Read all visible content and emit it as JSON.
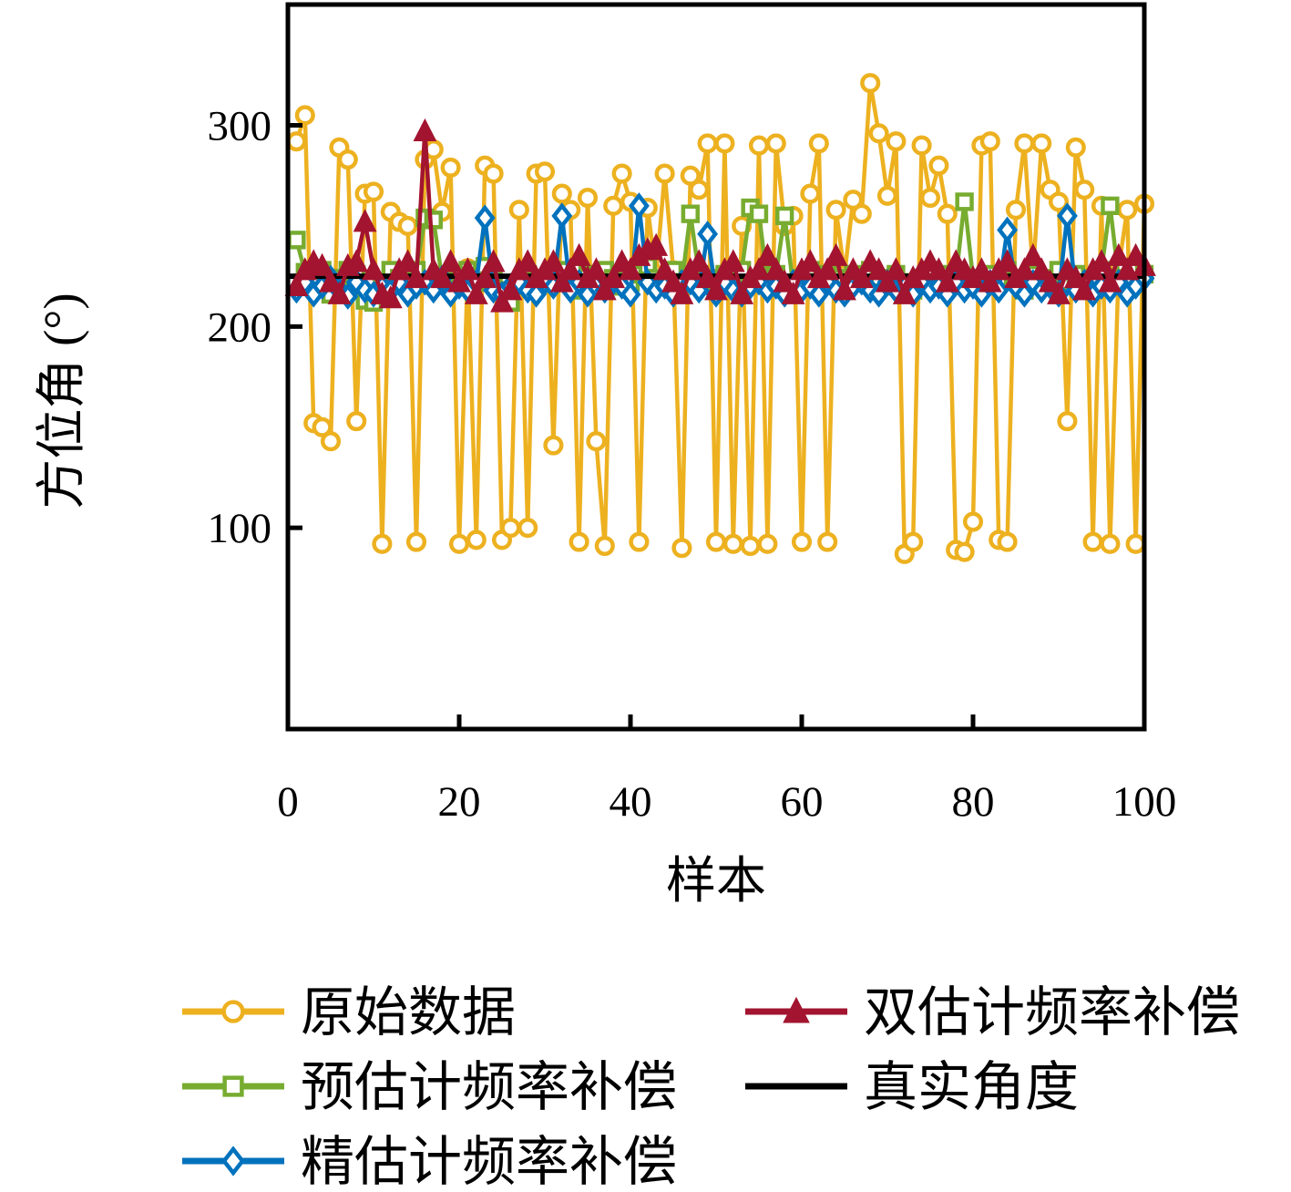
{
  "figure": {
    "background": "#ffffff",
    "axis_color": "#000000"
  },
  "chart_data": {
    "type": "line",
    "title": "",
    "xlabel": "样本",
    "ylabel": "方位角 (°)",
    "xlim": [
      0,
      100
    ],
    "ylim": [
      0,
      360
    ],
    "xticks": [
      0,
      20,
      40,
      60,
      80,
      100
    ],
    "yticks": [
      100,
      200,
      300
    ],
    "grid": false,
    "legend_position": "below",
    "x_start": 1,
    "series": [
      {
        "name": "原始数据",
        "color": "#EDB120",
        "marker": "circle",
        "marker_fill": "open",
        "values": [
          292,
          305,
          152,
          150,
          143,
          289,
          283,
          153,
          266,
          267,
          92,
          257,
          252,
          250,
          93,
          283,
          288,
          257,
          279,
          92,
          229,
          94,
          280,
          276,
          94,
          100,
          258,
          100,
          276,
          277,
          141,
          266,
          258,
          93,
          264,
          143,
          91,
          260,
          276,
          262,
          93,
          259,
          226,
          276,
          228,
          90,
          275,
          268,
          291,
          93,
          291,
          92,
          250,
          91,
          290,
          92,
          291,
          250,
          255,
          93,
          266,
          291,
          93,
          258,
          226,
          263,
          256,
          321,
          296,
          265,
          292,
          87,
          93,
          290,
          264,
          280,
          256,
          89,
          88,
          103,
          290,
          292,
          94,
          93,
          258,
          291,
          226,
          291,
          268,
          262,
          153,
          289,
          268,
          93,
          260,
          92,
          229,
          258,
          92,
          261
        ]
      },
      {
        "name": "预估计频率补偿",
        "color": "#77AC30",
        "marker": "square",
        "marker_fill": "open",
        "values": [
          243,
          227,
          222,
          228,
          216,
          224,
          228,
          226,
          213,
          212,
          222,
          228,
          224,
          221,
          228,
          254,
          253,
          224,
          220,
          226,
          228,
          222,
          230,
          224,
          218,
          212,
          222,
          226,
          224,
          221,
          226,
          228,
          222,
          218,
          226,
          222,
          228,
          224,
          220,
          222,
          226,
          230,
          224,
          222,
          228,
          222,
          256,
          226,
          224,
          220,
          226,
          222,
          228,
          259,
          256,
          222,
          226,
          255,
          220,
          224,
          228,
          222,
          226,
          224,
          218,
          226,
          222,
          228,
          224,
          220,
          226,
          222,
          218,
          224,
          228,
          222,
          226,
          224,
          262,
          224,
          220,
          226,
          222,
          228,
          224,
          218,
          226,
          222,
          224,
          228,
          222,
          226,
          220,
          224,
          228,
          260,
          224,
          221,
          228,
          226
        ]
      },
      {
        "name": "精估计频率补偿",
        "color": "#0072BD",
        "marker": "diamond",
        "marker_fill": "open",
        "values": [
          218,
          222,
          216,
          220,
          224,
          218,
          215,
          222,
          218,
          216,
          220,
          218,
          222,
          216,
          220,
          222,
          218,
          224,
          216,
          220,
          218,
          222,
          254,
          218,
          216,
          220,
          222,
          218,
          216,
          222,
          220,
          255,
          218,
          222,
          216,
          220,
          218,
          222,
          220,
          216,
          260,
          222,
          218,
          220,
          216,
          222,
          222,
          218,
          246,
          216,
          222,
          218,
          216,
          220,
          222,
          218,
          220,
          216,
          222,
          218,
          220,
          216,
          222,
          218,
          216,
          220,
          222,
          218,
          216,
          222,
          218,
          220,
          216,
          222,
          218,
          220,
          216,
          222,
          218,
          220,
          216,
          222,
          218,
          248,
          220,
          216,
          222,
          218,
          220,
          216,
          255,
          218,
          222,
          216,
          220,
          218,
          222,
          216,
          220,
          224
        ]
      },
      {
        "name": "双估计频率补偿",
        "color": "#A2142F",
        "marker": "triangle",
        "marker_fill": "solid",
        "values": [
          220,
          228,
          232,
          230,
          222,
          216,
          230,
          232,
          252,
          228,
          216,
          214,
          228,
          232,
          224,
          297,
          228,
          224,
          232,
          222,
          228,
          216,
          224,
          232,
          212,
          218,
          228,
          232,
          224,
          228,
          232,
          222,
          228,
          235,
          224,
          228,
          218,
          224,
          232,
          228,
          235,
          238,
          240,
          228,
          222,
          216,
          228,
          232,
          224,
          218,
          228,
          232,
          216,
          224,
          228,
          235,
          228,
          222,
          216,
          228,
          232,
          224,
          228,
          235,
          218,
          228,
          224,
          232,
          228,
          222,
          228,
          216,
          224,
          228,
          232,
          228,
          222,
          232,
          228,
          224,
          228,
          222,
          228,
          232,
          224,
          228,
          235,
          228,
          222,
          216,
          228,
          224,
          218,
          228,
          232,
          222,
          235,
          228,
          235,
          230
        ]
      }
    ],
    "true_line": {
      "name": "真实角度",
      "color": "#000000",
      "value": 225
    }
  },
  "legend": {
    "entries": [
      {
        "label": "原始数据",
        "series": 0,
        "col": 0,
        "row": 0
      },
      {
        "label": "双估计频率补偿",
        "series": 3,
        "col": 1,
        "row": 0
      },
      {
        "label": "预估计频率补偿",
        "series": 1,
        "col": 0,
        "row": 1
      },
      {
        "label": "真实角度",
        "series": -1,
        "col": 1,
        "row": 1
      },
      {
        "label": "精估计频率补偿",
        "series": 2,
        "col": 0,
        "row": 2
      }
    ]
  }
}
